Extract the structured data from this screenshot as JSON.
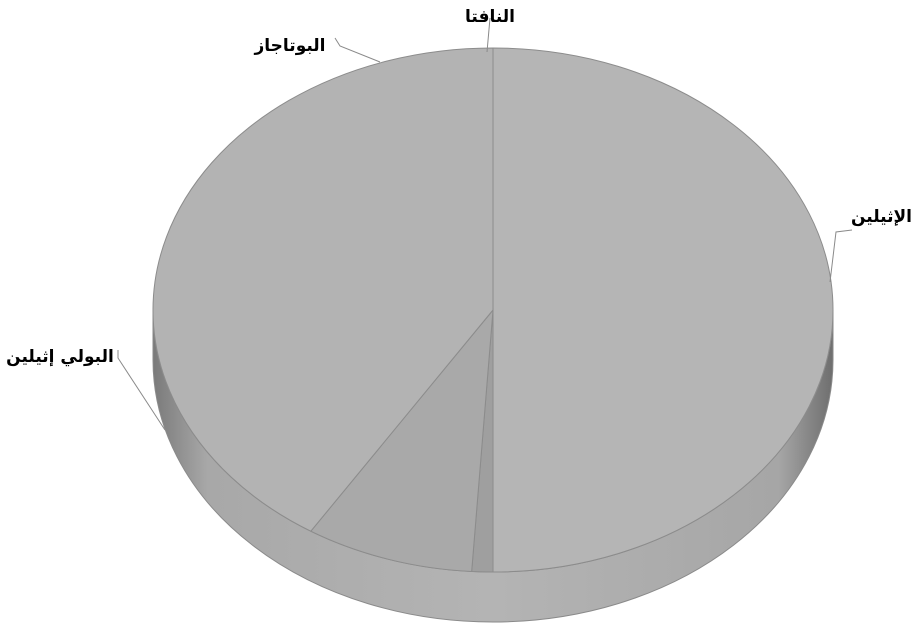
{
  "chart_data": {
    "type": "pie",
    "style": "3d",
    "slices": [
      {
        "label": "الإثيلين",
        "value": 50,
        "color": "#b5b5b5"
      },
      {
        "label": "النافتا",
        "value": 1,
        "color": "#9f9f9f"
      },
      {
        "label": "البوتاجاز",
        "value": 8,
        "color": "#a9a9a9"
      },
      {
        "label": "البولي إثيلين",
        "value": 41,
        "color": "#b3b3b3"
      }
    ]
  }
}
